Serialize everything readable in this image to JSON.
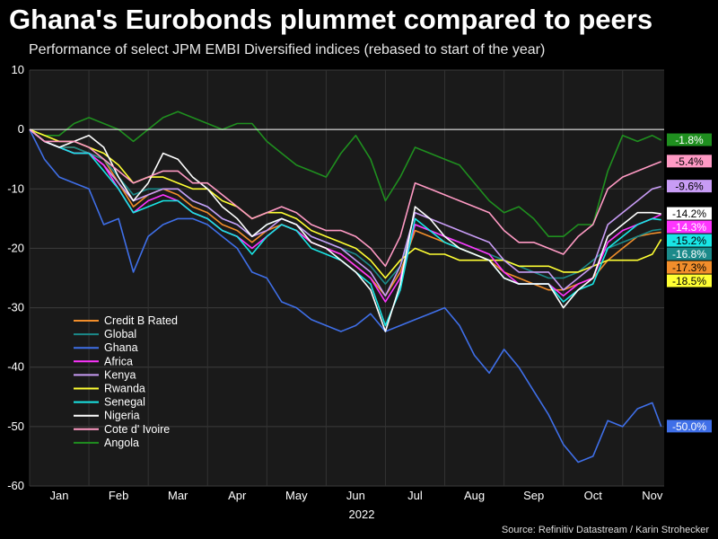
{
  "header": {
    "title": "Ghana's Eurobonds plummet compared to peers",
    "subtitle": "Performance of select JPM EMBI Diversified indices (rebased to start of the year)",
    "source": "Source: Refinitiv Datastream / Karin Strohecker"
  },
  "chart_data": {
    "type": "line",
    "xlabel": "2022",
    "ylabel": "",
    "ylim": [
      -60,
      10
    ],
    "yticks": [
      10,
      0,
      -10,
      -20,
      -30,
      -40,
      -50,
      -60
    ],
    "xlim": [
      0,
      10.7
    ],
    "month_labels": [
      "Jan",
      "Feb",
      "Mar",
      "Apr",
      "May",
      "Jun",
      "Jul",
      "Aug",
      "Sep",
      "Oct",
      "Nov"
    ],
    "grid": true,
    "legend": "bottom-left",
    "baseline": 0,
    "x": [
      0,
      0.25,
      0.5,
      0.75,
      1,
      1.25,
      1.5,
      1.75,
      2,
      2.25,
      2.5,
      2.75,
      3,
      3.25,
      3.5,
      3.75,
      4,
      4.25,
      4.5,
      4.75,
      5,
      5.25,
      5.5,
      5.75,
      6,
      6.25,
      6.5,
      6.75,
      7,
      7.25,
      7.5,
      7.75,
      8,
      8.25,
      8.5,
      8.75,
      9,
      9.25,
      9.5,
      9.75,
      10,
      10.25,
      10.5,
      10.65
    ],
    "series": [
      {
        "name": "Credit B Rated",
        "color": "#f28e2b",
        "end_label": "-17.3%",
        "values": [
          0,
          -2,
          -3,
          -3,
          -4,
          -5,
          -9,
          -13,
          -11,
          -10,
          -11,
          -13,
          -14,
          -16,
          -17,
          -19,
          -17,
          -16,
          -17,
          -19,
          -20,
          -21,
          -23,
          -25,
          -28,
          -24,
          -17,
          -18,
          -19,
          -20,
          -21,
          -22,
          -24,
          -25,
          -26,
          -27,
          -27,
          -26,
          -25,
          -22,
          -20,
          -18,
          -17.5,
          -17.3
        ]
      },
      {
        "name": "Global",
        "color": "#1b8a8a",
        "end_label": "-16.8%",
        "values": [
          0,
          -2,
          -3,
          -3,
          -4,
          -5,
          -8,
          -11,
          -10,
          -10,
          -10,
          -12,
          -13,
          -15,
          -16,
          -18,
          -16,
          -15,
          -16,
          -18,
          -19,
          -20,
          -21,
          -23,
          -26,
          -23,
          -16,
          -17,
          -18,
          -19,
          -20,
          -21,
          -22,
          -23,
          -24,
          -25,
          -25,
          -24,
          -22,
          -20,
          -19,
          -18,
          -17,
          -16.8
        ]
      },
      {
        "name": "Ghana",
        "color": "#3f6fe8",
        "end_label": "-50.0%",
        "values": [
          0,
          -5,
          -8,
          -9,
          -10,
          -16,
          -15,
          -24,
          -18,
          -16,
          -15,
          -15,
          -16,
          -18,
          -20,
          -24,
          -25,
          -29,
          -30,
          -32,
          -33,
          -34,
          -33,
          -31,
          -34,
          -33,
          -32,
          -31,
          -30,
          -33,
          -38,
          -41,
          -37,
          -40,
          -44,
          -48,
          -53,
          -56,
          -55,
          -49,
          -50,
          -47,
          -46,
          -50
        ]
      },
      {
        "name": "Africa",
        "color": "#ff35ff",
        "end_label": "-14.3%",
        "values": [
          0,
          -2,
          -3,
          -4,
          -4,
          -6,
          -10,
          -14,
          -12,
          -11,
          -12,
          -14,
          -15,
          -17,
          -18,
          -20,
          -18,
          -16,
          -17,
          -19,
          -20,
          -21,
          -23,
          -25,
          -29,
          -25,
          -16,
          -17,
          -18,
          -19,
          -20,
          -21,
          -24,
          -26,
          -26,
          -26,
          -28,
          -26,
          -25,
          -19,
          -17,
          -16,
          -15,
          -14.3
        ]
      },
      {
        "name": "Kenya",
        "color": "#c89cf5",
        "end_label": "-9.6%",
        "values": [
          0,
          -2,
          -3,
          -4,
          -4,
          -6,
          -9,
          -12,
          -11,
          -10,
          -10,
          -12,
          -13,
          -15,
          -16,
          -18,
          -17,
          -15,
          -16,
          -18,
          -19,
          -20,
          -22,
          -24,
          -28,
          -23,
          -14,
          -15,
          -16,
          -17,
          -18,
          -19,
          -22,
          -24,
          -24,
          -24,
          -27,
          -25,
          -23,
          -16,
          -14,
          -12,
          -10,
          -9.6
        ]
      },
      {
        "name": "Rwanda",
        "color": "#ffff33",
        "end_label": "-18.5%",
        "values": [
          0,
          -1,
          -2,
          -2,
          -3,
          -4,
          -6,
          -9,
          -8,
          -8,
          -9,
          -10,
          -10,
          -12,
          -13,
          -15,
          -14,
          -14,
          -15,
          -17,
          -18,
          -19,
          -20,
          -22,
          -25,
          -22,
          -20,
          -21,
          -21,
          -22,
          -22,
          -22,
          -22,
          -23,
          -23,
          -23,
          -24,
          -24,
          -23,
          -22,
          -22,
          -22,
          -21,
          -18.5
        ]
      },
      {
        "name": "Senegal",
        "color": "#19e6e6",
        "end_label": "-15.2%",
        "values": [
          0,
          -2,
          -3,
          -4,
          -4,
          -7,
          -10,
          -14,
          -13,
          -12,
          -12,
          -14,
          -15,
          -17,
          -18,
          -21,
          -18,
          -16,
          -17,
          -20,
          -21,
          -22,
          -24,
          -26,
          -33,
          -27,
          -15,
          -17,
          -19,
          -20,
          -21,
          -22,
          -25,
          -26,
          -26,
          -26,
          -29,
          -27,
          -26,
          -20,
          -18,
          -16,
          -15,
          -15.2
        ]
      },
      {
        "name": "Nigeria",
        "color": "#ffffff",
        "end_label": "-14.2%",
        "values": [
          0,
          -2,
          -3,
          -2,
          -1,
          -3,
          -8,
          -12,
          -9,
          -4,
          -5,
          -8,
          -10,
          -13,
          -15,
          -18,
          -16,
          -15,
          -16,
          -19,
          -20,
          -22,
          -24,
          -27,
          -34,
          -26,
          -13,
          -15,
          -18,
          -20,
          -21,
          -22,
          -25,
          -26,
          -26,
          -26,
          -30,
          -27,
          -25,
          -18,
          -16,
          -14,
          -14,
          -14.2
        ]
      },
      {
        "name": "Cote d' Ivoire",
        "color": "#ff9ac4",
        "end_label": "-5.4%",
        "values": [
          0,
          -2,
          -2,
          -2,
          -3,
          -5,
          -7,
          -9,
          -8,
          -7,
          -7,
          -9,
          -9,
          -11,
          -13,
          -15,
          -14,
          -13,
          -14,
          -16,
          -17,
          -17,
          -18,
          -20,
          -23,
          -18,
          -9,
          -10,
          -11,
          -12,
          -13,
          -14,
          -17,
          -19,
          -19,
          -20,
          -21,
          -18,
          -16,
          -10,
          -8,
          -7,
          -6,
          -5.4
        ]
      },
      {
        "name": "Angola",
        "color": "#1f8f1f",
        "end_label": "-1.8%",
        "values": [
          0,
          -1,
          -1,
          1,
          2,
          1,
          0,
          -2,
          0,
          2,
          3,
          2,
          1,
          0,
          1,
          1,
          -2,
          -4,
          -6,
          -7,
          -8,
          -4,
          -1,
          -5,
          -12,
          -8,
          -3,
          -4,
          -5,
          -6,
          -9,
          -12,
          -14,
          -13,
          -15,
          -18,
          -18,
          -16,
          -16,
          -7,
          -1,
          -2,
          -1,
          -1.8
        ]
      }
    ]
  }
}
